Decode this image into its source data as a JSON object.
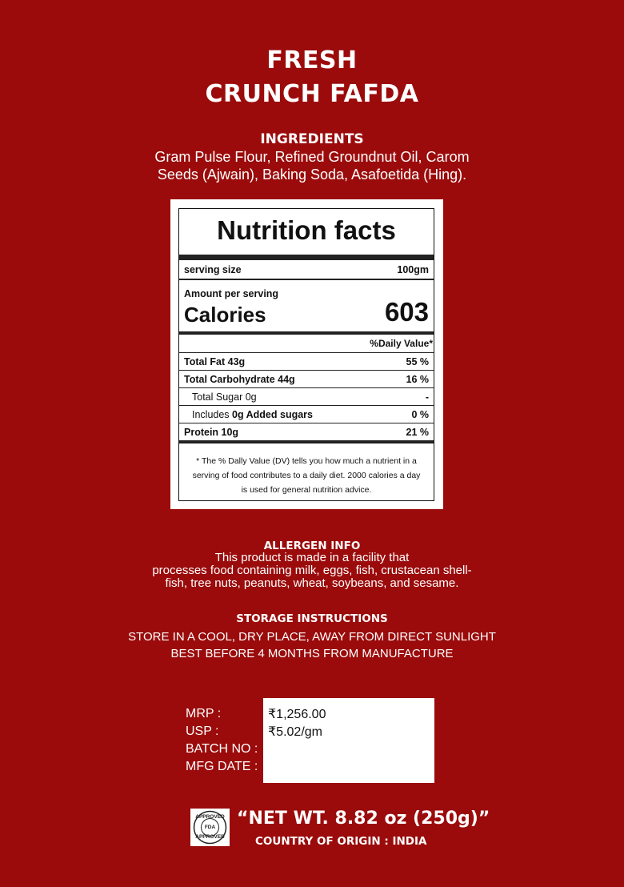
{
  "product": {
    "title_line1": "FRESH",
    "title_line2": "CRUNCH FAFDA"
  },
  "ingredients": {
    "heading": "INGREDIENTS",
    "line1": "Gram Pulse Flour, Refined Groundnut Oil, Carom",
    "line2": "Seeds (Ajwain), Baking Soda, Asafoetida (Hing)."
  },
  "nutrition": {
    "title": "Nutrition facts",
    "serving_label": "serving size",
    "serving_value": "100gm",
    "amount_label": "Amount per serving",
    "calories_label": "Calories",
    "calories_value": "603",
    "dv_header": "%Daily Value*",
    "rows": [
      {
        "label": "Total Fat 43g",
        "value": "55 %"
      },
      {
        "label": "Total Carbohydrate 44g",
        "value": "16 %"
      },
      {
        "label": "Total Sugar 0g",
        "value": "-"
      },
      {
        "label_pre": "Includes ",
        "label_bold": "0g Added sugars",
        "value": "0 %"
      },
      {
        "label": "Protein 10g",
        "value": "21 %"
      }
    ],
    "footnote_line1": "* The % Dally Value (DV) tells you how much a nutrient in a",
    "footnote_line2": "serving of food contributes to a daily diet. 2000 calories a day",
    "footnote_line3": "is used for general nutrition advice."
  },
  "allergen": {
    "heading": "ALLERGEN INFO",
    "line1": "This product is made in a facility that",
    "line2": "processes food containing milk, eggs, fish, crustacean shell-",
    "line3": "fish, tree nuts, peanuts, wheat, soybeans, and sesame."
  },
  "storage": {
    "heading": "STORAGE INSTRUCTIONS",
    "line1": "STORE IN A COOL, DRY PLACE, AWAY FROM DIRECT SUNLIGHT",
    "line2": "BEST BEFORE 4 MONTHS FROM MANUFACTURE"
  },
  "pricing": {
    "labels": [
      "MRP :",
      "USP :",
      "BATCH NO :",
      "MFG DATE :"
    ],
    "values": [
      "₹1,256.00",
      "₹5.02/gm",
      "",
      ""
    ]
  },
  "footer": {
    "fda_logo_text": "APPROVED FDA APPROVED",
    "net_weight": "“NET WT. 8.82 oz (250g)”",
    "origin": "COUNTRY OF ORIGIN : INDIA"
  },
  "colors": {
    "background": "#9b0b0b",
    "panel": "#ffffff",
    "text": "#ffffff"
  }
}
